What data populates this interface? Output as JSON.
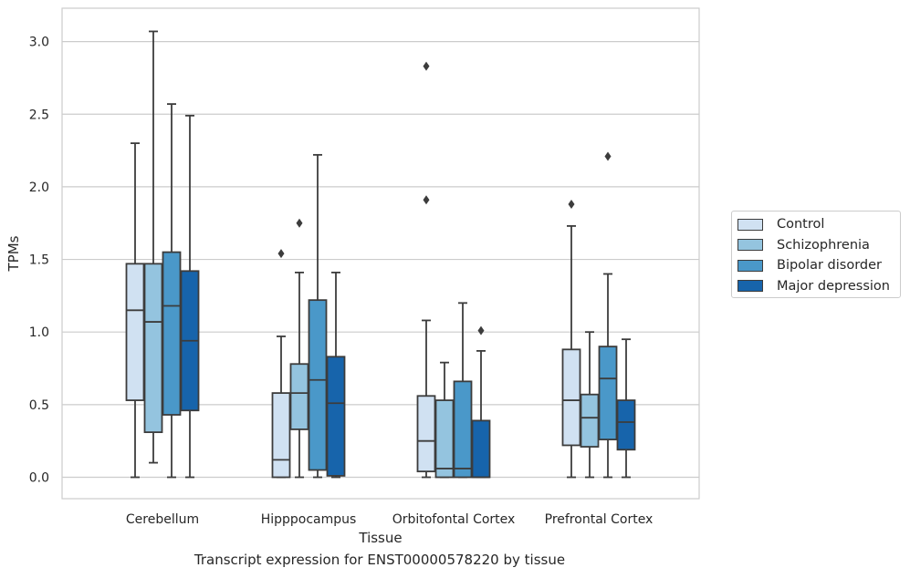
{
  "chart_data": {
    "type": "box",
    "xlabel": "Tissue",
    "ylabel": "TPMs",
    "ylim": [
      -0.15,
      3.23
    ],
    "yticks": [
      "0.0",
      "0.5",
      "1.0",
      "1.5",
      "2.0",
      "2.5",
      "3.0"
    ],
    "grid": "horizontal",
    "legend_position": "right",
    "categories": [
      "Cerebellum",
      "Hipppocampus",
      "Orbitofontal Cortex",
      "Prefrontal Cortex"
    ],
    "series": [
      {
        "name": "Control",
        "color": "#d0e1f2",
        "boxes": [
          {
            "whisker_low": 0.0,
            "q1": 0.53,
            "median": 1.15,
            "q3": 1.47,
            "whisker_high": 2.3,
            "outliers": []
          },
          {
            "whisker_low": 0.0,
            "q1": 0.0,
            "median": 0.12,
            "q3": 0.58,
            "whisker_high": 0.97,
            "outliers": [
              1.54
            ]
          },
          {
            "whisker_low": 0.0,
            "q1": 0.04,
            "median": 0.25,
            "q3": 0.56,
            "whisker_high": 1.08,
            "outliers": [
              1.91,
              2.83
            ]
          },
          {
            "whisker_low": 0.0,
            "q1": 0.22,
            "median": 0.53,
            "q3": 0.88,
            "whisker_high": 1.73,
            "outliers": [
              1.88
            ]
          }
        ]
      },
      {
        "name": "Schizophrenia",
        "color": "#94c4df",
        "boxes": [
          {
            "whisker_low": 0.1,
            "q1": 0.31,
            "median": 1.07,
            "q3": 1.47,
            "whisker_high": 3.07,
            "outliers": []
          },
          {
            "whisker_low": 0.0,
            "q1": 0.33,
            "median": 0.58,
            "q3": 0.78,
            "whisker_high": 1.41,
            "outliers": [
              1.75
            ]
          },
          {
            "whisker_low": 0.0,
            "q1": 0.0,
            "median": 0.06,
            "q3": 0.53,
            "whisker_high": 0.79,
            "outliers": []
          },
          {
            "whisker_low": 0.0,
            "q1": 0.21,
            "median": 0.41,
            "q3": 0.57,
            "whisker_high": 1.0,
            "outliers": []
          }
        ]
      },
      {
        "name": "Bipolar disorder",
        "color": "#4a98c9",
        "boxes": [
          {
            "whisker_low": 0.0,
            "q1": 0.43,
            "median": 1.18,
            "q3": 1.55,
            "whisker_high": 2.57,
            "outliers": []
          },
          {
            "whisker_low": 0.0,
            "q1": 0.05,
            "median": 0.67,
            "q3": 1.22,
            "whisker_high": 2.22,
            "outliers": []
          },
          {
            "whisker_low": 0.0,
            "q1": 0.0,
            "median": 0.06,
            "q3": 0.66,
            "whisker_high": 1.2,
            "outliers": []
          },
          {
            "whisker_low": 0.0,
            "q1": 0.26,
            "median": 0.68,
            "q3": 0.9,
            "whisker_high": 1.4,
            "outliers": [
              2.21
            ]
          }
        ]
      },
      {
        "name": "Major depression",
        "color": "#1764ab",
        "boxes": [
          {
            "whisker_low": 0.0,
            "q1": 0.46,
            "median": 0.94,
            "q3": 1.42,
            "whisker_high": 2.49,
            "outliers": []
          },
          {
            "whisker_low": 0.0,
            "q1": 0.01,
            "median": 0.51,
            "q3": 0.83,
            "whisker_high": 1.41,
            "outliers": []
          },
          {
            "whisker_low": 0.0,
            "q1": 0.0,
            "median": 0.0,
            "q3": 0.39,
            "whisker_high": 0.87,
            "outliers": [
              1.01
            ]
          },
          {
            "whisker_low": 0.0,
            "q1": 0.19,
            "median": 0.38,
            "q3": 0.53,
            "whisker_high": 0.95,
            "outliers": []
          }
        ]
      }
    ]
  },
  "caption": "Transcript expression for ENST00000578220 by tissue"
}
